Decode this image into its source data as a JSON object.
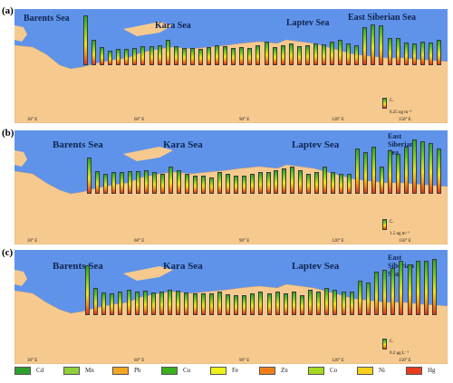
{
  "panels": [
    {
      "label": "(a)",
      "seas": [
        "Barents Sea",
        "Kara Sea",
        "Laptev Sea",
        "East Siberian Sea"
      ],
      "ticks": [
        "30° E",
        "60° E",
        "90° E",
        "120° E",
        "150° E"
      ],
      "scale": "0.25 ng m⁻³",
      "scale_unit": "C.",
      "bar_heights": [
        55,
        28,
        20,
        16,
        18,
        18,
        19,
        21,
        21,
        22,
        28,
        21,
        19,
        19,
        18,
        20,
        22,
        21,
        19,
        20,
        19,
        22,
        26,
        20,
        22,
        24,
        21,
        22,
        24,
        23,
        26,
        28,
        24,
        22,
        42,
        45,
        44,
        30,
        30,
        25,
        24,
        26,
        25,
        28
      ]
    },
    {
      "label": "(b)",
      "seas": [
        "Barents Sea",
        "Kara Sea",
        "Laptev Sea",
        "East Siberian Sea"
      ],
      "ticks": [
        "30° E",
        "60° E",
        "90° E",
        "120° E",
        "150° E"
      ],
      "scale": "1.5 ng m⁻³",
      "scale_unit": "C.",
      "bar_heights": [
        40,
        25,
        22,
        24,
        24,
        25,
        25,
        26,
        24,
        22,
        30,
        26,
        22,
        20,
        20,
        18,
        24,
        22,
        20,
        20,
        22,
        24,
        24,
        26,
        28,
        30,
        26,
        22,
        24,
        30,
        24,
        22,
        22,
        50,
        46,
        52,
        30,
        48,
        44,
        52,
        60,
        58,
        56,
        50
      ]
    },
    {
      "label": "(c)",
      "seas": [
        "Barents Sea",
        "Kara Sea",
        "Laptev Sea",
        "East Siberian Sea"
      ],
      "ticks": [
        "30° E",
        "60° E",
        "90° E",
        "120° E",
        "150° E"
      ],
      "scale": "0.2 μg L⁻¹",
      "scale_unit": "C.",
      "bar_heights": [
        55,
        30,
        25,
        24,
        26,
        28,
        26,
        27,
        25,
        26,
        28,
        27,
        25,
        24,
        24,
        24,
        26,
        23,
        22,
        22,
        24,
        26,
        24,
        26,
        24,
        26,
        22,
        28,
        26,
        30,
        28,
        26,
        26,
        38,
        36,
        48,
        50,
        52,
        60,
        56,
        60,
        60,
        62
      ]
    }
  ],
  "legend": [
    {
      "label": "Cd",
      "color": "#2ca02c"
    },
    {
      "label": "Mn",
      "color": "#8fd13a"
    },
    {
      "label": "Pb",
      "color": "#f5a623"
    },
    {
      "label": "Cu",
      "color": "#3ab01e"
    },
    {
      "label": "Fe",
      "color": "#eef21a"
    },
    {
      "label": "Zn",
      "color": "#f07f1a"
    },
    {
      "label": "Co",
      "color": "#a6d81e"
    },
    {
      "label": "Ni",
      "color": "#f7d11a"
    },
    {
      "label": "Hg",
      "color": "#ea3b1c"
    }
  ]
}
